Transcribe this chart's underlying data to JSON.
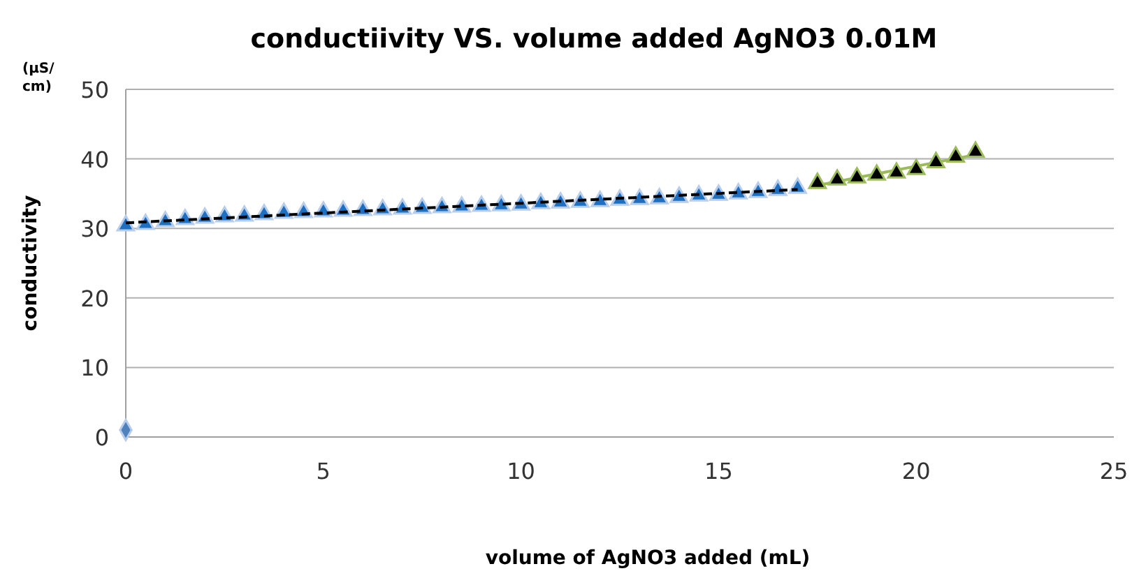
{
  "chart_data": {
    "type": "scatter",
    "title": "conductiivity VS. volume added AgNO3 0.01M",
    "xlabel": "volume of AgNO3 added (mL)",
    "ylabel": "conductivity",
    "annotations": [
      "(μS/ cm)"
    ],
    "xlim": [
      0,
      25
    ],
    "xticks": [
      0,
      5,
      10,
      15,
      20,
      25
    ],
    "ylim": [
      0,
      50
    ],
    "yticks": [
      0,
      10,
      20,
      30,
      40,
      50
    ],
    "grid": "y",
    "series": [
      {
        "marker": "diamond",
        "color": "#4f81bd",
        "x": [
          0
        ],
        "values": [
          1
        ]
      },
      {
        "marker": "triangle",
        "color": "#1f6fc0",
        "x": [
          0,
          0.5,
          1,
          1.5,
          2,
          2.5,
          3,
          3.5,
          4,
          4.5,
          5,
          5.5,
          6,
          6.5,
          7,
          7.5,
          8,
          8.5,
          9,
          9.5,
          10,
          10.5,
          11,
          11.5,
          12,
          12.5,
          13,
          13.5,
          14,
          14.5,
          15,
          15.5,
          16,
          16.5,
          17
        ],
        "values": [
          30.4,
          30.6,
          31,
          31.3,
          31.5,
          31.7,
          31.8,
          32,
          32.2,
          32.3,
          32.4,
          32.5,
          32.6,
          32.7,
          32.8,
          32.9,
          33,
          33.1,
          33.2,
          33.3,
          33.4,
          33.6,
          33.7,
          33.8,
          33.9,
          34.1,
          34.2,
          34.3,
          34.5,
          34.7,
          34.8,
          35,
          35.2,
          35.5,
          35.8
        ]
      },
      {
        "type": "line",
        "marker": "none",
        "line_style": "dashed",
        "color": "#000000",
        "x": [
          0,
          17
        ],
        "values": [
          30.8,
          35.6
        ]
      },
      {
        "type": "line",
        "marker": "none",
        "line_style": "solid",
        "color": "#9bbb59",
        "x": [
          17.5,
          21.5
        ],
        "values": [
          36.2,
          40.6
        ]
      },
      {
        "marker": "triangle",
        "color": "#000000",
        "x": [
          17.5,
          18,
          18.5,
          19,
          19.5,
          20,
          20.5,
          21,
          21.5
        ],
        "values": [
          36.5,
          37,
          37.3,
          37.7,
          38,
          38.5,
          39.5,
          40.3,
          41
        ]
      }
    ]
  }
}
